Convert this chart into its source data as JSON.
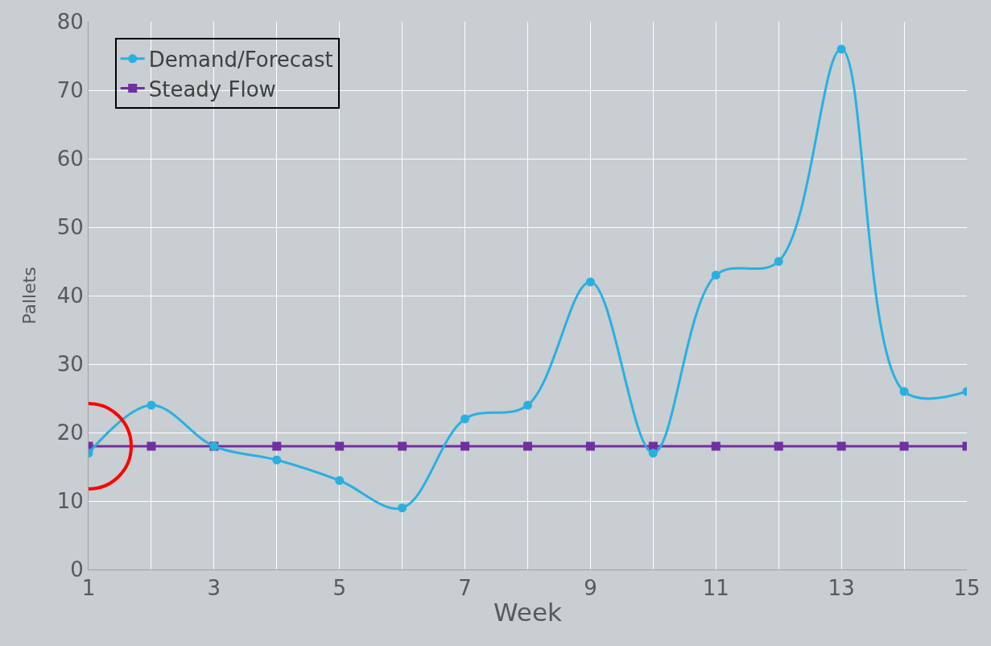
{
  "chart_data": {
    "type": "line",
    "xlabel": "Week",
    "ylabel": "Pallets",
    "x": [
      1,
      2,
      3,
      4,
      5,
      6,
      7,
      8,
      9,
      10,
      11,
      12,
      13,
      14,
      15
    ],
    "series": [
      {
        "name": "Demand/Forecast",
        "color": "#29b0e0",
        "marker": "circle",
        "values": [
          17,
          24,
          18,
          16,
          13,
          9,
          22,
          24,
          42,
          17,
          43,
          45,
          76,
          26,
          26
        ]
      },
      {
        "name": "Steady Flow",
        "color": "#7030a0",
        "marker": "square",
        "values": [
          18,
          18,
          18,
          18,
          18,
          18,
          18,
          18,
          18,
          18,
          18,
          18,
          18,
          18,
          18
        ]
      }
    ],
    "xlim": [
      1,
      15
    ],
    "xticks": [
      1,
      {
        "value": 2,
        "label": null
      },
      3,
      {
        "value": 4,
        "label": null
      },
      5,
      {
        "value": 6,
        "label": null
      },
      7,
      {
        "value": 8,
        "label": null
      },
      9,
      {
        "value": 10,
        "label": null
      },
      11,
      {
        "value": 12,
        "label": null
      },
      13,
      {
        "value": 14,
        "label": null
      },
      15
    ],
    "ylim": [
      0,
      80
    ],
    "yticks": [
      0,
      10,
      20,
      30,
      40,
      50,
      60,
      70,
      80
    ],
    "grid": true,
    "legend": "top left",
    "line_style": "solid"
  }
}
